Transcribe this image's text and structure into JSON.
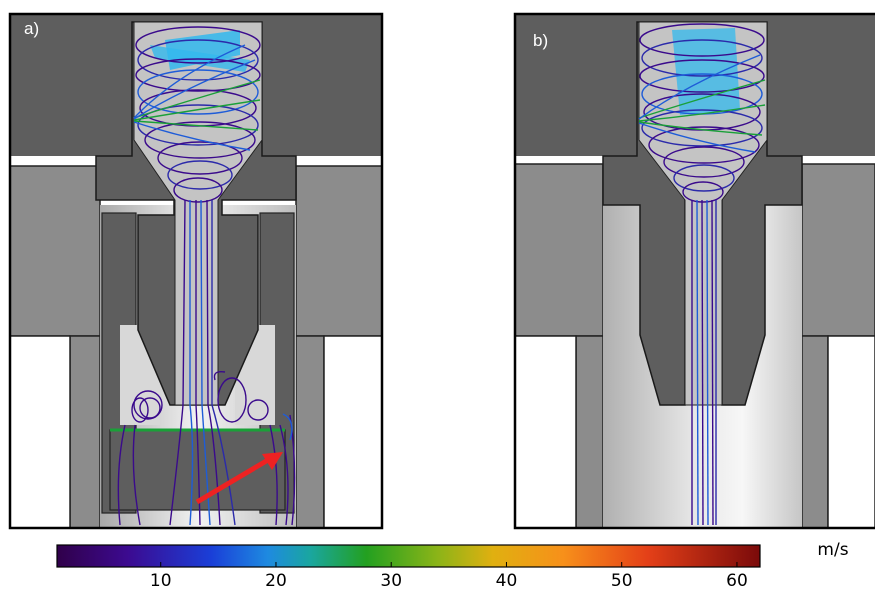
{
  "panels": [
    {
      "id": "a",
      "label": "a)"
    },
    {
      "id": "b",
      "label": "b)"
    }
  ],
  "colorbar": {
    "unit": "m/s",
    "ticks": [
      "10",
      "20",
      "30",
      "40",
      "50",
      "60"
    ],
    "min": 1,
    "max": 62,
    "colormap": "jet-like (purple-blue-green-yellow-orange-red)"
  },
  "colors": {
    "dark_grey": "#5e5e5e",
    "mid_grey": "#8c8c8c",
    "light_grey": "#c4c4c4",
    "streamline_slow": "#3a0a8c",
    "streamline_mid": "#1e5cd8",
    "streamline_fast": "#1aa038",
    "jet_cyan": "#33b9ee",
    "arrow": "#ee2222"
  }
}
